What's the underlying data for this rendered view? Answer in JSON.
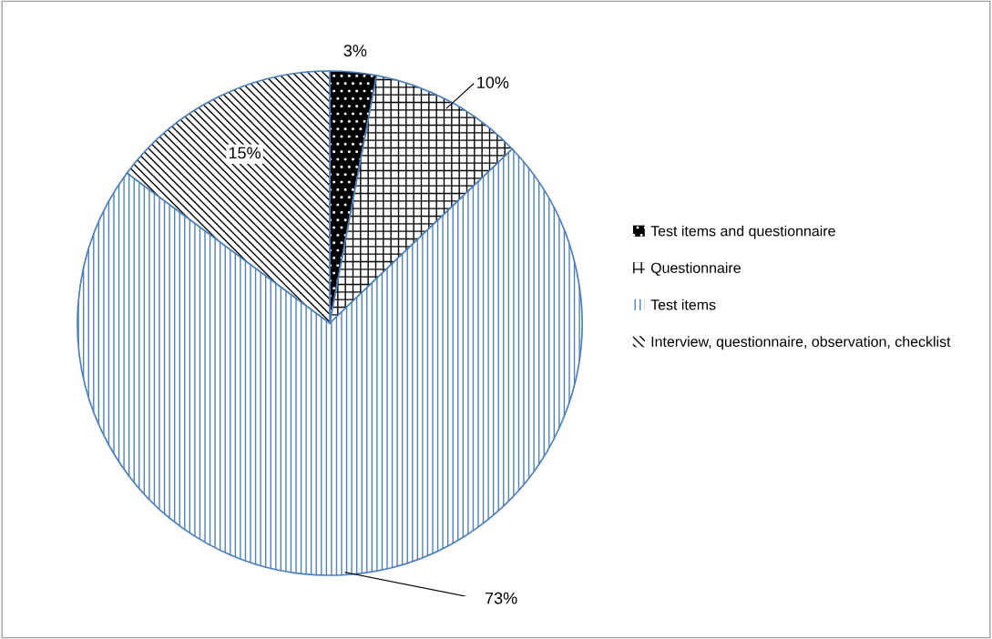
{
  "chart_data": {
    "type": "pie",
    "categories": [
      "Test items and questionnaire",
      "Questionnaire",
      "Test items",
      "Interview, questionnaire, observation, checklist"
    ],
    "values": [
      3,
      10,
      73,
      15
    ],
    "colors": [
      "#000000",
      "#000000",
      "#4f81bd",
      "#000000"
    ],
    "value_labels": [
      "3%",
      "10%",
      "73%",
      "15%"
    ],
    "legend": "right"
  }
}
